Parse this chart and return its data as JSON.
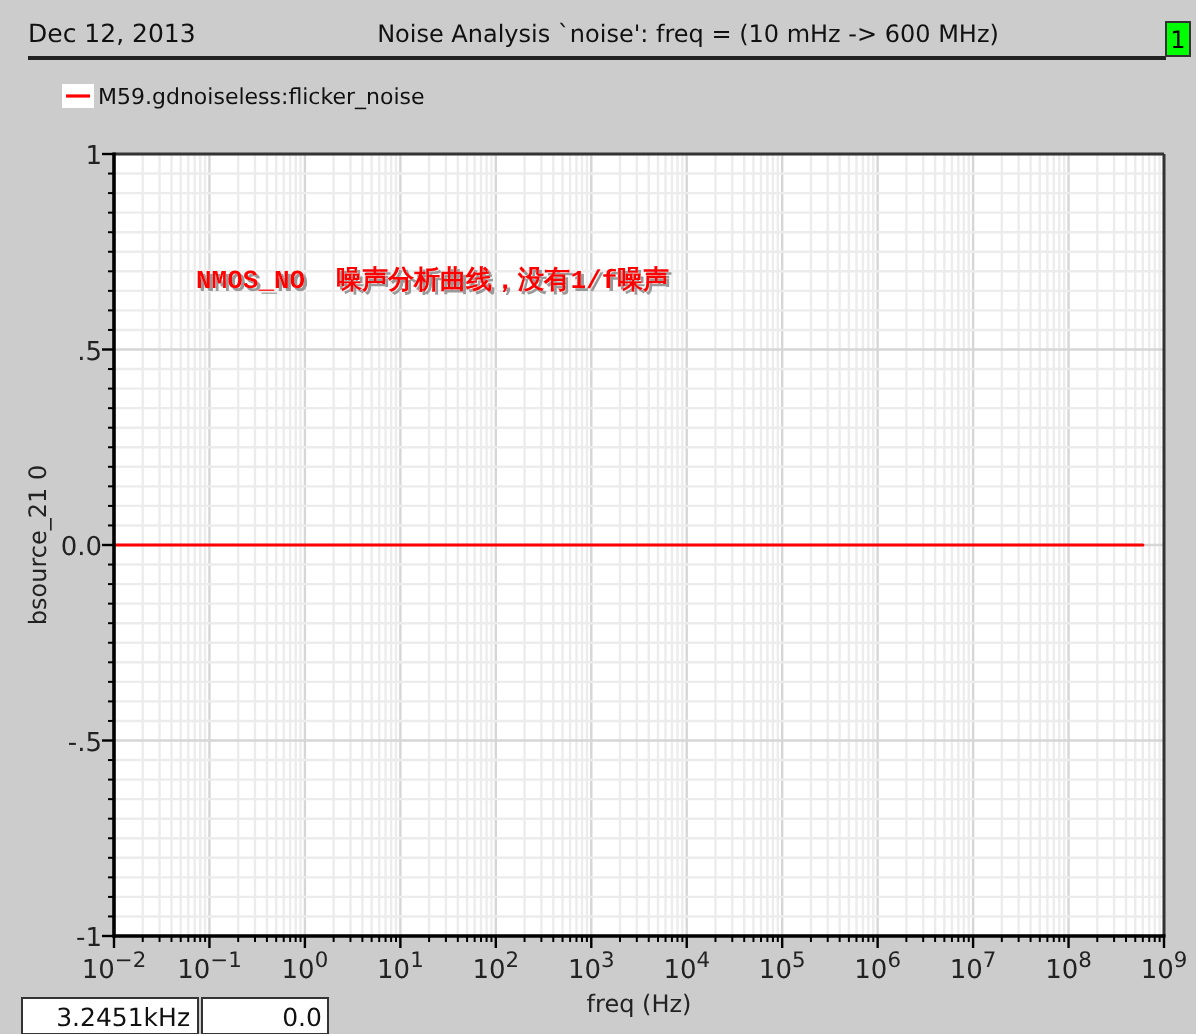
{
  "chart_data": {
    "type": "line",
    "title": "Noise Analysis `noise': freq = (10 mHz -> 600 MHz)",
    "xlabel": "freq (Hz)",
    "ylabel": "bsource_21 0",
    "x": [
      0.01,
      600000000
    ],
    "series": [
      {
        "name": "M59.gdnoiseless:flicker_noise",
        "color": "#ff0000",
        "values": [
          0,
          0
        ]
      }
    ],
    "log": "x",
    "xlim": [
      0.01,
      1000000000
    ],
    "xticks": [
      {
        "value": 0.01,
        "label": "10$^{−2}$"
      },
      {
        "value": 0.1,
        "label": "10$^{−1}$"
      },
      {
        "value": 1,
        "label": "10$^{0}$"
      },
      {
        "value": 10,
        "label": "10$^{1}$"
      },
      {
        "value": 100,
        "label": "10$^{2}$"
      },
      {
        "value": 1000,
        "label": "10$^{3}$"
      },
      {
        "value": 10000,
        "label": "10$^{4}$"
      },
      {
        "value": 100000,
        "label": "10$^{5}$"
      },
      {
        "value": 1000000,
        "label": "10$^{6}$"
      },
      {
        "value": 10000000,
        "label": "10$^{7}$"
      },
      {
        "value": 100000000,
        "label": "10$^{8}$"
      },
      {
        "value": 1000000000,
        "label": "10$^{9}$"
      }
    ],
    "ylim": [
      -1,
      1
    ],
    "yticks": [
      -1,
      {
        "value": -0.5,
        "label": "-.5"
      },
      {
        "value": 0,
        "label": "0.0"
      },
      {
        "value": 0.5,
        "label": ".5"
      },
      1
    ],
    "grid": true,
    "legend": "top left",
    "line_style": "solid",
    "annotations": [
      "Dec 12, 2013",
      "1",
      "NMOS_NO  噪声分析曲线，没有1/f噪声",
      "3.2451kHz",
      "0.0"
    ]
  }
}
